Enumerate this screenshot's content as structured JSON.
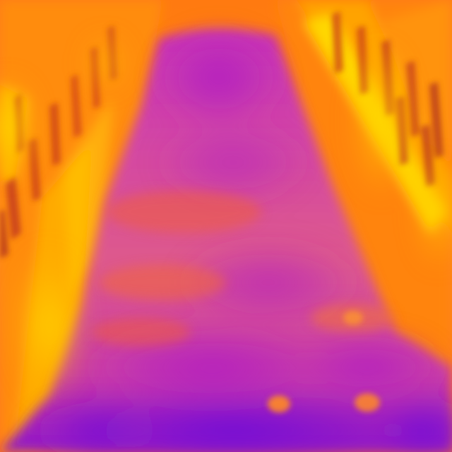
{
  "image": {
    "kind": "thermal-photo",
    "palette": {
      "hot": "#ffe000",
      "warm": "#ff8a12",
      "mid": "#f0603a",
      "cool": "#c02ab8",
      "cold": "#7a10d0"
    }
  }
}
